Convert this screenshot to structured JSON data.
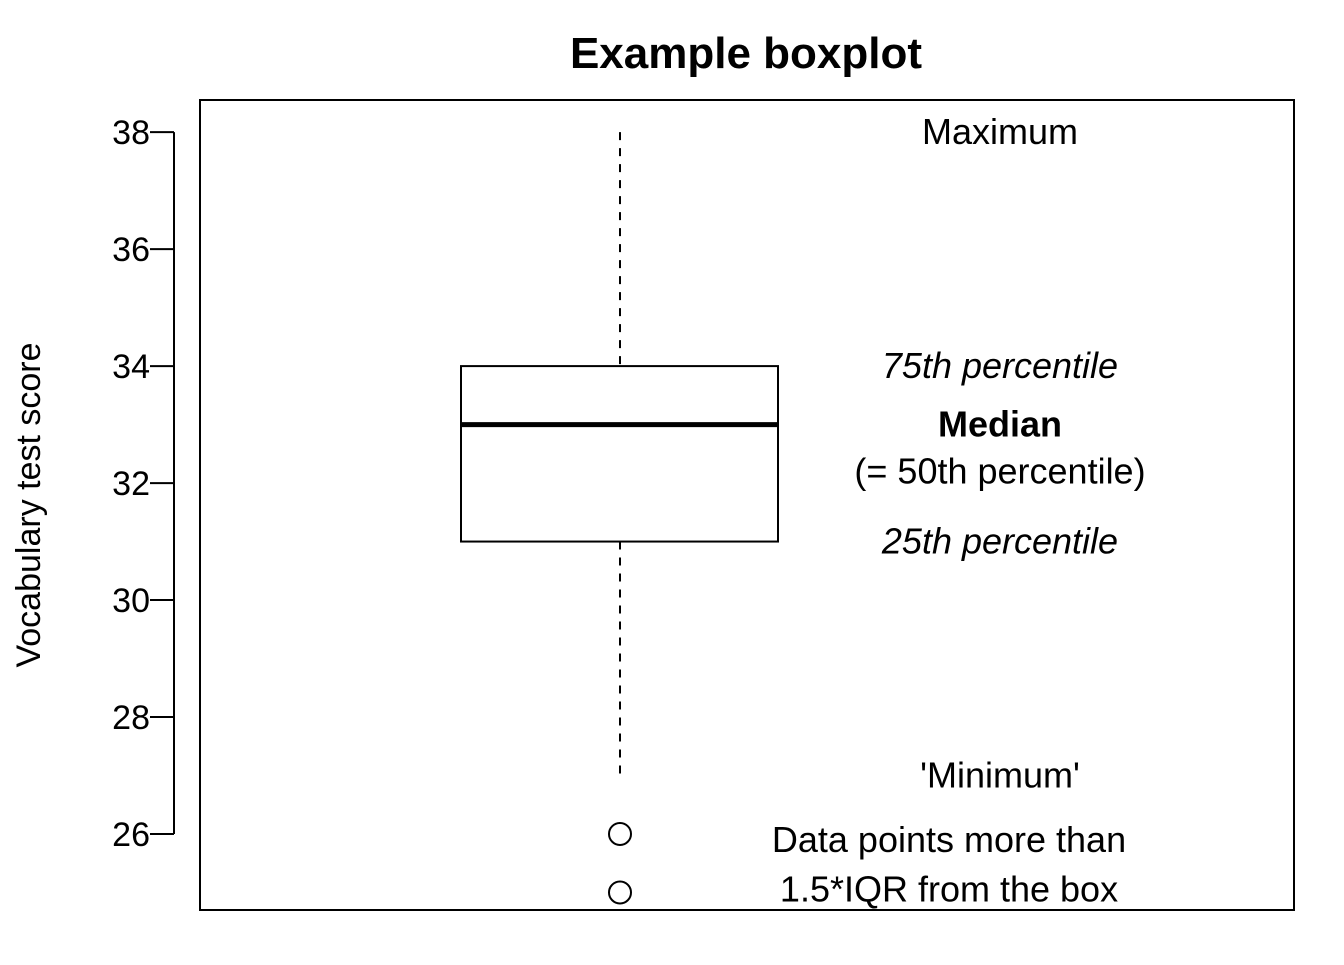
{
  "chart_data": {
    "type": "box",
    "title": "Example boxplot",
    "xlabel": "",
    "ylabel": "Vocabulary test score",
    "ylim": [
      24.7,
      38.55
    ],
    "yticks": [
      26,
      28,
      30,
      32,
      34,
      36,
      38
    ],
    "ytick_labels": [
      "26",
      "28",
      "30",
      "32",
      "34",
      "36",
      "38"
    ],
    "grid": false,
    "box": {
      "whisker_low": 27,
      "q1": 31,
      "median": 33,
      "q3": 34,
      "whisker_high": 38,
      "outliers": [
        26,
        25
      ]
    },
    "annotations": [
      {
        "id": "maximum",
        "text": "Maximum",
        "y": 38,
        "style": "normal"
      },
      {
        "id": "q3",
        "text": "75th percentile",
        "y": 34,
        "style": "italic"
      },
      {
        "id": "median",
        "text": "Median",
        "y": 33,
        "style": "bold"
      },
      {
        "id": "median-sub",
        "text": "(= 50th percentile)",
        "y": 32.2,
        "style": "normal"
      },
      {
        "id": "q1",
        "text": "25th percentile",
        "y": 31,
        "style": "italic"
      },
      {
        "id": "minimum",
        "text": "'Minimum'",
        "y": 27,
        "style": "normal"
      },
      {
        "id": "outlier-line1",
        "text": "Data points more than",
        "y": 25.9,
        "style": "normal"
      },
      {
        "id": "outlier-line2",
        "text": "1.5*IQR from the box",
        "y": 25.05,
        "style": "normal"
      }
    ]
  }
}
